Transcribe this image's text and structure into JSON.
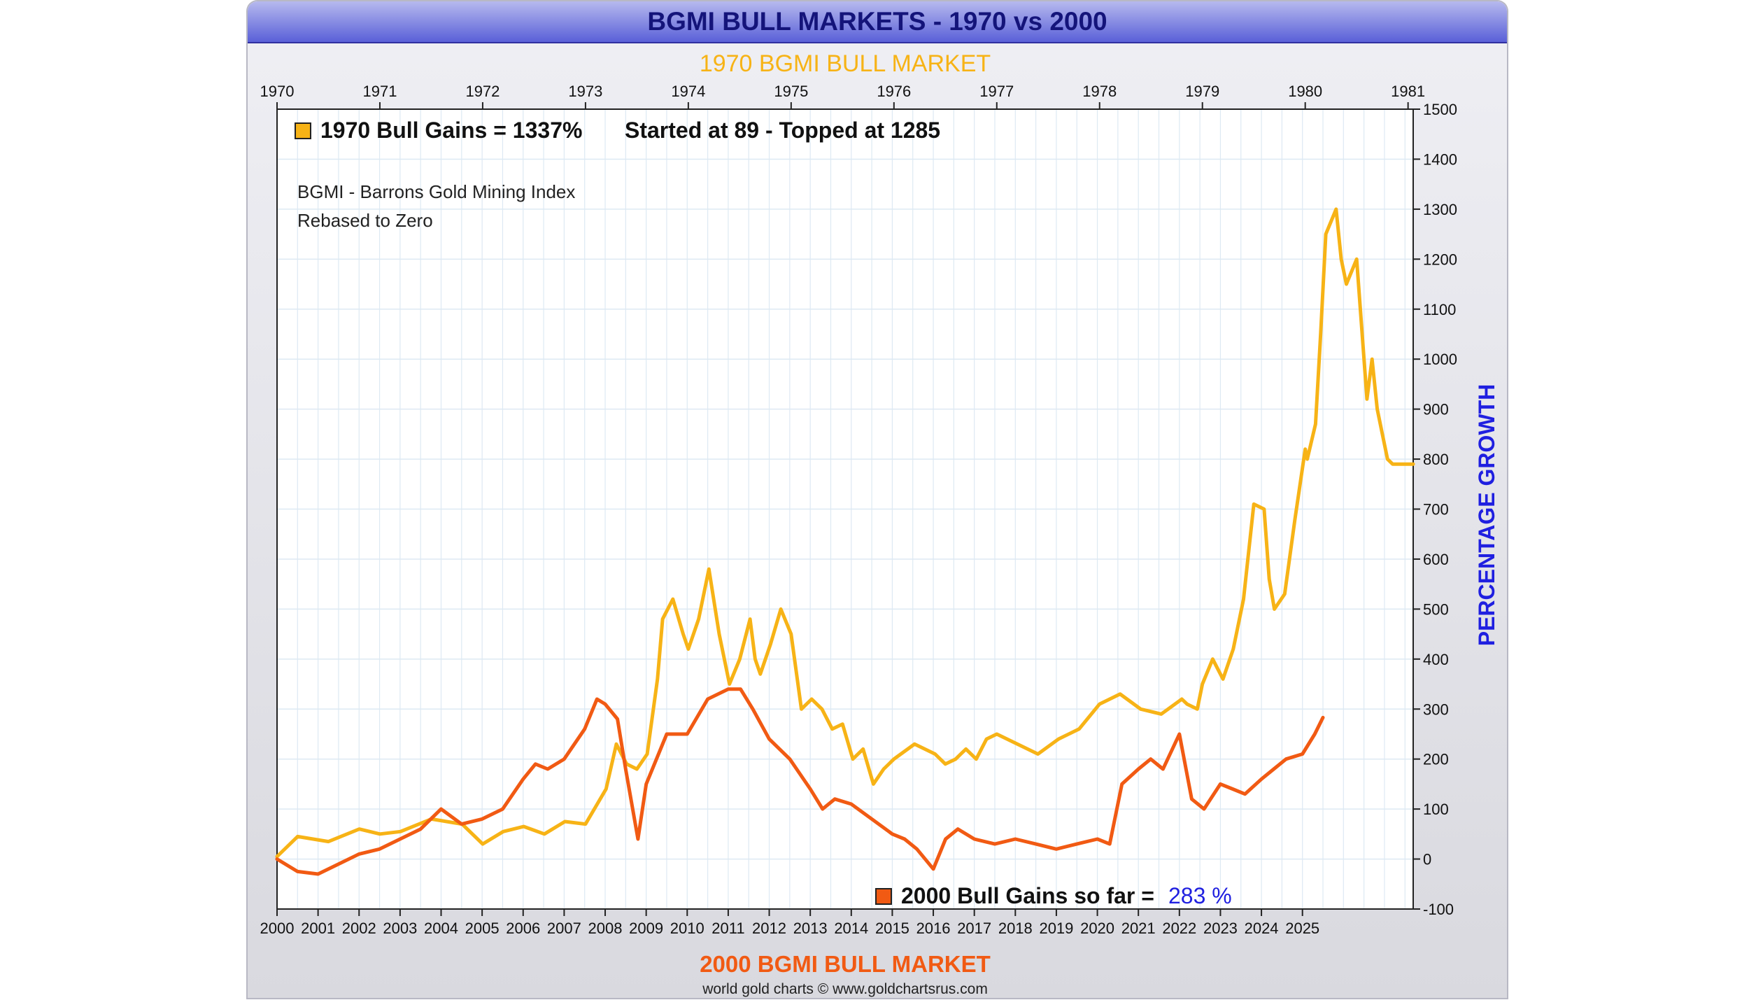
{
  "title": "BGMI BULL MARKETS - 1970 vs 2000",
  "top_axis_title": "1970 BGMI BULL MARKET",
  "bottom_axis_title": "2000 BGMI BULL MARKET",
  "right_axis_title": "PERCENTAGE GROWTH",
  "credit": "world gold charts © www.goldchartsrus.com",
  "legend": {
    "s1970_label": "1970 Bull Gains = 1337%",
    "s1970_detail": "Started at 89 - Topped at 1285",
    "s2000_label": "2000 Bull Gains so far =",
    "s2000_value": "283 %"
  },
  "annotation": {
    "line1": "BGMI - Barrons Gold Mining Index",
    "line2": "Rebased to Zero"
  },
  "colors": {
    "s1970": "#f7b316",
    "s2000": "#f15a13",
    "accent_blue": "#1f1fe0",
    "grid": "#dde9f3"
  },
  "chart_data": {
    "type": "line",
    "title": "BGMI BULL MARKETS - 1970 vs 2000",
    "ylabel": "PERCENTAGE GROWTH",
    "ylim": [
      -100,
      1500
    ],
    "yticks": [
      -100,
      0,
      100,
      200,
      300,
      400,
      500,
      600,
      700,
      800,
      900,
      1000,
      1100,
      1200,
      1300,
      1400,
      1500
    ],
    "top_xlim": [
      1970,
      1981.05
    ],
    "top_ticks": [
      "1970",
      "1971",
      "1972",
      "1973",
      "1974",
      "1975",
      "1976",
      "1977",
      "1978",
      "1979",
      "1980",
      "1981"
    ],
    "bottom_xlim": [
      2000,
      2027.7
    ],
    "bottom_ticks": [
      "2000",
      "2001",
      "2002",
      "2003",
      "2004",
      "2005",
      "2006",
      "2007",
      "2008",
      "2009",
      "2010",
      "2011",
      "2012",
      "2013",
      "2014",
      "2015",
      "2016",
      "2017",
      "2018",
      "2019",
      "2020",
      "2021",
      "2022",
      "2023",
      "2024",
      "2025"
    ],
    "series": [
      {
        "name": "1970 BGMI Bull Market",
        "axis": "top",
        "x": [
          1970,
          1970.2,
          1970.5,
          1970.8,
          1971.0,
          1971.2,
          1971.5,
          1971.8,
          1972.0,
          1972.2,
          1972.4,
          1972.6,
          1972.8,
          1973.0,
          1973.2,
          1973.3,
          1973.4,
          1973.5,
          1973.6,
          1973.7,
          1973.75,
          1973.85,
          1973.95,
          1974.0,
          1974.1,
          1974.2,
          1974.3,
          1974.4,
          1974.5,
          1974.6,
          1974.65,
          1974.7,
          1974.8,
          1974.9,
          1975.0,
          1975.1,
          1975.2,
          1975.3,
          1975.4,
          1975.5,
          1975.6,
          1975.7,
          1975.8,
          1975.9,
          1976.0,
          1976.2,
          1976.4,
          1976.5,
          1976.6,
          1976.65,
          1976.7,
          1976.8,
          1976.9,
          1977.0,
          1977.2,
          1977.4,
          1977.6,
          1977.8,
          1978.0,
          1978.2,
          1978.4,
          1978.6,
          1978.8,
          1978.85,
          1978.95,
          1979.0,
          1979.1,
          1979.2,
          1979.3,
          1979.4,
          1979.5,
          1979.6,
          1979.65,
          1979.7,
          1979.8,
          1979.9,
          1980.0,
          1980.02,
          1980.1,
          1980.15,
          1980.2,
          1980.3,
          1980.35,
          1980.4,
          1980.5,
          1980.6,
          1980.65,
          1980.7,
          1980.75,
          1980.8,
          1980.85,
          1980.9,
          1980.95,
          1981.0,
          1981.05
        ],
        "y": [
          5,
          45,
          35,
          60,
          50,
          55,
          80,
          70,
          30,
          55,
          65,
          50,
          75,
          70,
          140,
          230,
          190,
          180,
          210,
          360,
          480,
          520,
          450,
          420,
          480,
          580,
          450,
          350,
          400,
          480,
          400,
          370,
          430,
          500,
          450,
          300,
          320,
          300,
          260,
          270,
          200,
          220,
          150,
          180,
          200,
          230,
          210,
          190,
          200,
          210,
          220,
          200,
          240,
          250,
          230,
          210,
          240,
          260,
          310,
          330,
          300,
          290,
          320,
          310,
          300,
          350,
          400,
          360,
          420,
          520,
          710,
          700,
          560,
          500,
          530,
          680,
          820,
          800,
          870,
          1050,
          1250,
          1300,
          1200,
          1150,
          1200,
          920,
          1000,
          900,
          850,
          800,
          790,
          790,
          790,
          790,
          790
        ]
      },
      {
        "name": "2000 BGMI Bull Market",
        "axis": "bottom",
        "x": [
          2000,
          2000.5,
          2001,
          2001.5,
          2002,
          2002.5,
          2003,
          2003.5,
          2004,
          2004.5,
          2005,
          2005.5,
          2006,
          2006.3,
          2006.6,
          2007,
          2007.5,
          2007.8,
          2008,
          2008.3,
          2008.5,
          2008.8,
          2009,
          2009.5,
          2010,
          2010.5,
          2011,
          2011.3,
          2011.6,
          2012,
          2012.5,
          2013,
          2013.3,
          2013.6,
          2014,
          2014.5,
          2015,
          2015.3,
          2015.6,
          2016,
          2016.3,
          2016.6,
          2017,
          2017.5,
          2018,
          2018.5,
          2019,
          2019.5,
          2020,
          2020.3,
          2020.6,
          2021,
          2021.3,
          2021.6,
          2022,
          2022.3,
          2022.6,
          2023,
          2023.3,
          2023.6,
          2024,
          2024.3,
          2024.6,
          2025,
          2025.3,
          2025.5
        ],
        "y": [
          0,
          -25,
          -30,
          -10,
          10,
          20,
          40,
          60,
          100,
          70,
          80,
          100,
          160,
          190,
          180,
          200,
          260,
          320,
          310,
          280,
          180,
          40,
          150,
          250,
          250,
          320,
          340,
          340,
          300,
          240,
          200,
          140,
          100,
          120,
          110,
          80,
          50,
          40,
          20,
          -20,
          40,
          60,
          40,
          30,
          40,
          30,
          20,
          30,
          40,
          30,
          150,
          180,
          200,
          180,
          250,
          120,
          100,
          150,
          140,
          130,
          160,
          180,
          200,
          210,
          250,
          283
        ]
      }
    ]
  }
}
